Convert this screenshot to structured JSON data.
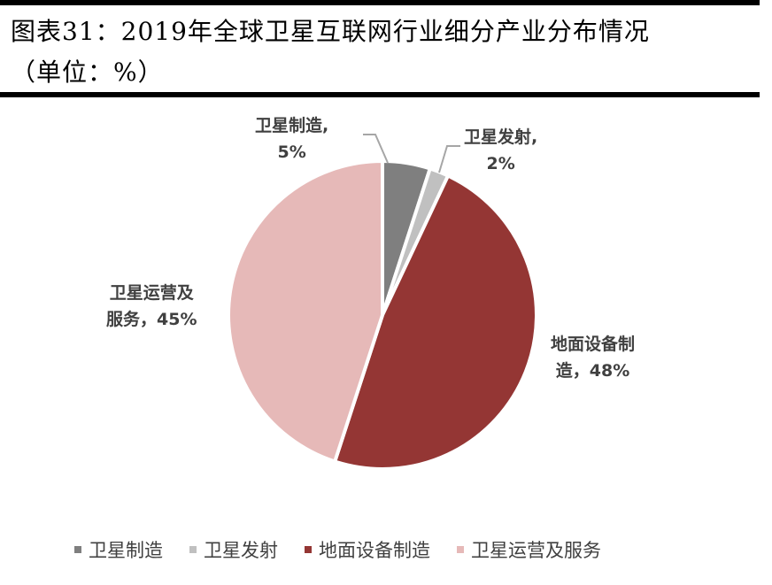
{
  "title": {
    "line1": "图表31：2019年全球卫星互联网行业细分产业分布情况",
    "line2": "（单位：%）"
  },
  "chart_data": {
    "type": "pie",
    "title": "图表31：2019年全球卫星互联网行业细分产业分布情况（单位：%）",
    "categories": [
      "卫星制造",
      "卫星发射",
      "地面设备制造",
      "卫星运营及服务"
    ],
    "values": [
      5,
      2,
      48,
      45
    ],
    "unit": "%",
    "colors": [
      "#7f7f7f",
      "#c0c0c0",
      "#943634",
      "#e6b9b8"
    ],
    "start_angle": "12 o'clock",
    "direction": "clockwise",
    "legend_position": "bottom",
    "data_labels": [
      "卫星制造, 5%",
      "卫星发射, 2%",
      "地面设备制造, 48%",
      "卫星运营及服务, 45%"
    ]
  },
  "labels": {
    "manufacturing": {
      "name": "卫星制造,",
      "value": "5%"
    },
    "launch": {
      "name": "卫星发射,",
      "value": "2%"
    },
    "ground": {
      "name": "地面设备制",
      "value": "造，48%"
    },
    "operation": {
      "name": "卫星运营及",
      "value": "服务，45%"
    }
  },
  "legend": [
    {
      "label": "卫星制造",
      "color": "#7f7f7f"
    },
    {
      "label": "卫星发射",
      "color": "#c0c0c0"
    },
    {
      "label": "地面设备制造",
      "color": "#943634"
    },
    {
      "label": "卫星运营及服务",
      "color": "#e6b9b8"
    }
  ]
}
